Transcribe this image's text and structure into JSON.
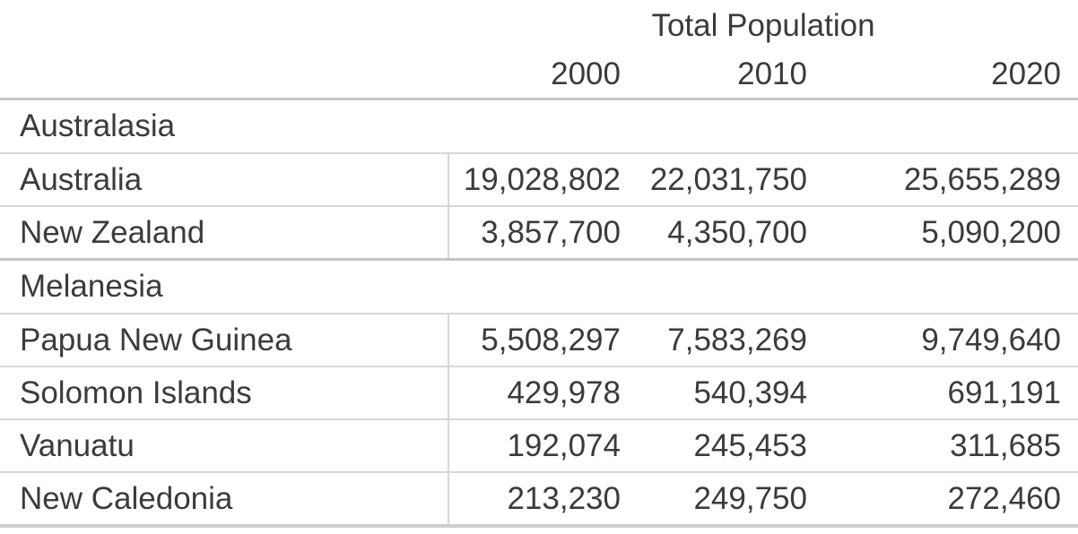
{
  "table": {
    "spanner": "Total Population",
    "years": [
      "2000",
      "2010",
      "2020"
    ],
    "groups": [
      {
        "name": "Australasia",
        "rows": [
          {
            "label": "Australia",
            "values": [
              "19,028,802",
              "22,031,750",
              "25,655,289"
            ]
          },
          {
            "label": "New Zealand",
            "values": [
              "3,857,700",
              "4,350,700",
              "5,090,200"
            ]
          }
        ]
      },
      {
        "name": "Melanesia",
        "rows": [
          {
            "label": "Papua New Guinea",
            "values": [
              "5,508,297",
              "7,583,269",
              "9,749,640"
            ]
          },
          {
            "label": "Solomon Islands",
            "values": [
              "429,978",
              "540,394",
              "691,191"
            ]
          },
          {
            "label": "Vanuatu",
            "values": [
              "192,074",
              "245,453",
              "311,685"
            ]
          },
          {
            "label": "New Caledonia",
            "values": [
              "213,230",
              "249,750",
              "272,460"
            ]
          }
        ]
      }
    ],
    "colors": {
      "text": "#3b3b3b",
      "thin_line": "#d7d7d7",
      "thick_line": "#c5c5c5",
      "bottom_line": "#cecece",
      "background": "#ffffff"
    }
  },
  "chart_data": {
    "type": "table",
    "title": "Total Population",
    "columns": [
      "2000",
      "2010",
      "2020"
    ],
    "row_groups": [
      {
        "group": "Australasia",
        "rows": [
          {
            "label": "Australia",
            "values": [
              19028802,
              22031750,
              25655289
            ]
          },
          {
            "label": "New Zealand",
            "values": [
              3857700,
              4350700,
              5090200
            ]
          }
        ]
      },
      {
        "group": "Melanesia",
        "rows": [
          {
            "label": "Papua New Guinea",
            "values": [
              5508297,
              7583269,
              9749640
            ]
          },
          {
            "label": "Solomon Islands",
            "values": [
              429978,
              540394,
              691191
            ]
          },
          {
            "label": "Vanuatu",
            "values": [
              192074,
              245453,
              311685
            ]
          },
          {
            "label": "New Caledonia",
            "values": [
              213230,
              249750,
              272460
            ]
          }
        ]
      }
    ],
    "layout": {
      "stub_column": "region / country",
      "value_alignment": "right",
      "spanner_centered_over_value_columns": true,
      "grid": "horizontal rules between rows; vertical rule between stub and values on data rows only"
    }
  }
}
